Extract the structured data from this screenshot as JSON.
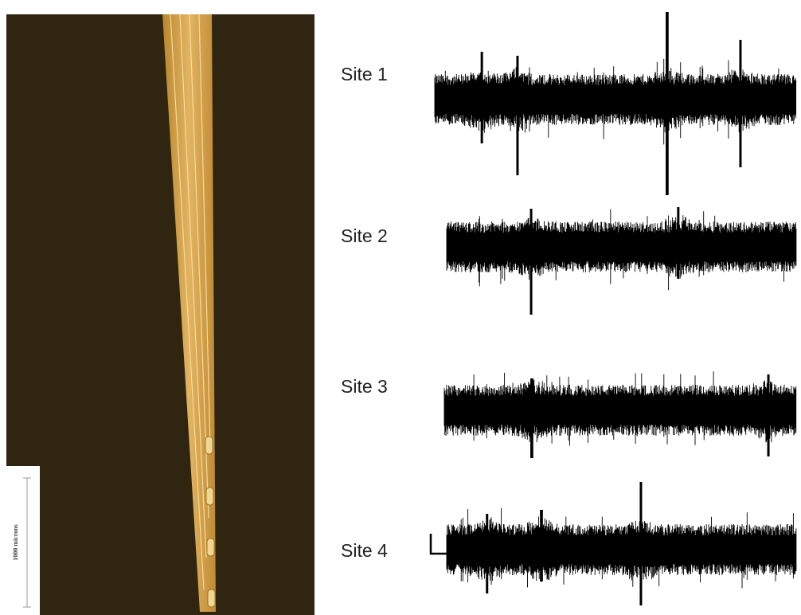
{
  "scale_bar": {
    "label": "1000 microns"
  },
  "sites": [
    {
      "label": "Site 1"
    },
    {
      "label": "Site 2"
    },
    {
      "label": "Site 3"
    },
    {
      "label": "Site 4"
    }
  ]
}
